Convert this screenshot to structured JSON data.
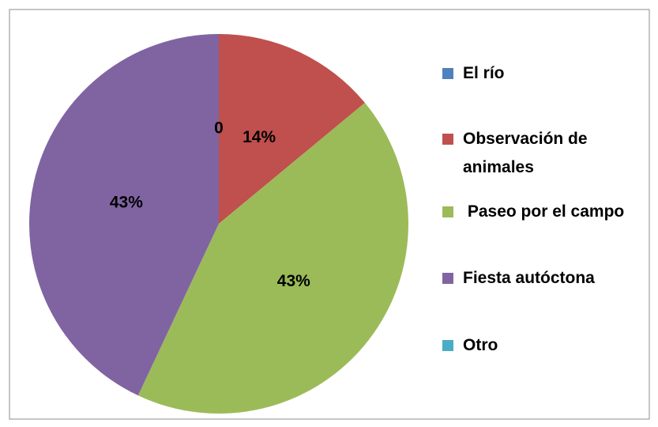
{
  "chart_data": {
    "type": "pie",
    "categories": [
      "El río",
      "Observación de animales",
      " Paseo por el campo",
      "Fiesta autóctona",
      "Otro"
    ],
    "values": [
      0,
      14,
      43,
      43,
      0
    ],
    "value_labels": [
      "0",
      "14%",
      "43%",
      "43%",
      null
    ],
    "colors": [
      "#4f81bd",
      "#c0504d",
      "#9bbb59",
      "#8064a2",
      "#4bacc6"
    ],
    "legend": "right"
  }
}
